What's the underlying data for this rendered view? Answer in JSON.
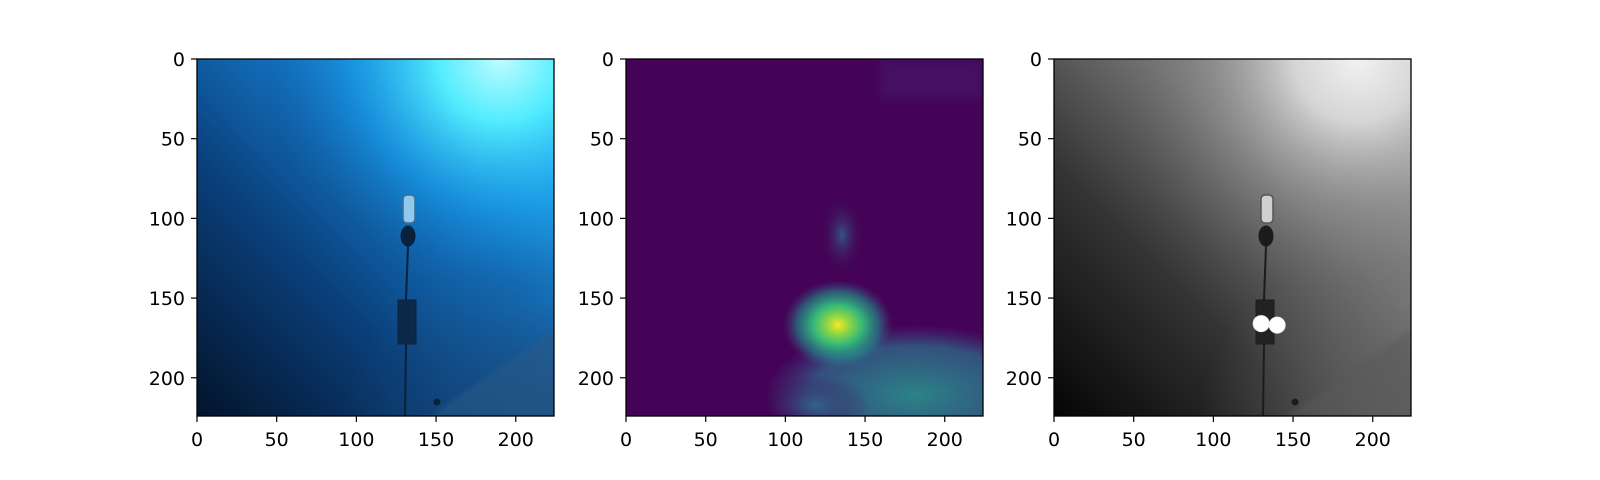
{
  "figure": {
    "panels": [
      {
        "name": "underwater-photo-panel",
        "content": "underwater rgb photo: sunlit surface top-right, mooring buoy line, rocky seabed bottom-right"
      },
      {
        "name": "activation-heatmap-panel",
        "content": "viridis heatmap, peak near (135,168)"
      },
      {
        "name": "grayscale-marked-panel",
        "content": "grayscale photo with two white keypoint markers"
      }
    ],
    "x_ticks": [
      "0",
      "50",
      "100",
      "150",
      "200"
    ],
    "y_ticks": [
      "0",
      "50",
      "100",
      "150",
      "200"
    ],
    "x_tick_values": [
      0,
      50,
      100,
      150,
      200
    ],
    "y_tick_values": [
      0,
      50,
      100,
      150,
      200
    ],
    "axis_range": [
      0,
      224
    ],
    "markers": [
      {
        "x": 130,
        "y": 166
      },
      {
        "x": 140,
        "y": 167
      }
    ],
    "heatmap_peak": {
      "x": 135,
      "y": 168
    },
    "colors": {
      "photo_deep": "#03142b",
      "photo_light": "#44f7ff",
      "viridis_low": "#440154",
      "viridis_mid": "#26828e",
      "viridis_high": "#fde725"
    }
  }
}
